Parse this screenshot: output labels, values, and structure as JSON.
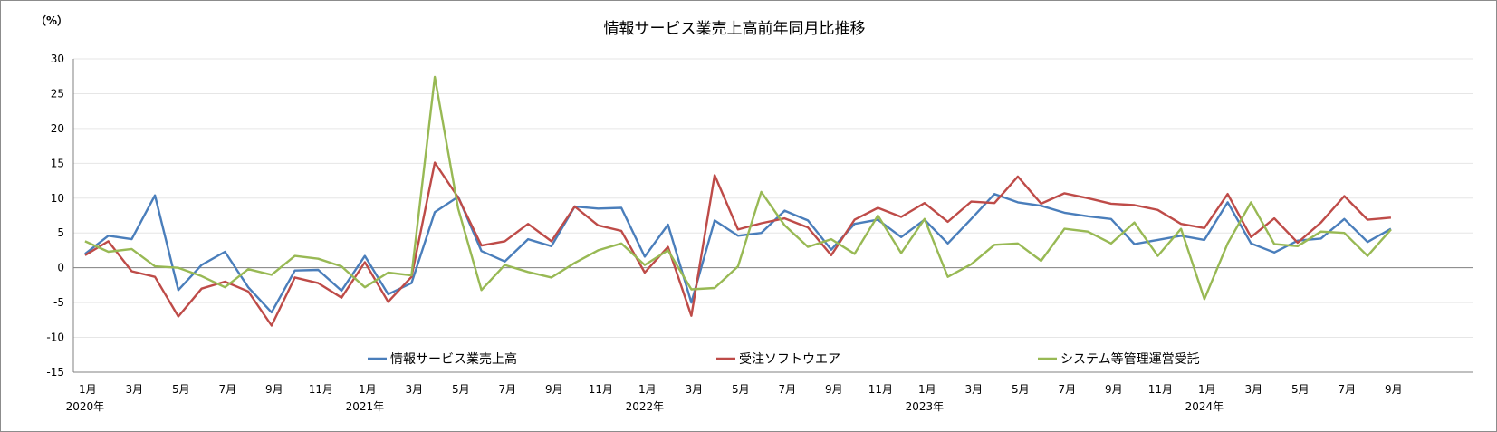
{
  "chart_data": {
    "type": "line",
    "title": "情報サービス業売上高前年同月比推移",
    "ylabel": "（%）",
    "xlabel": "",
    "ylim": [
      -15,
      30
    ],
    "yticks": [
      30,
      25,
      20,
      15,
      10,
      5,
      0,
      -5,
      -10,
      -15
    ],
    "grid": true,
    "legend_position": "bottom-inside",
    "x_tick_labels": [
      "1月",
      "3月",
      "5月",
      "7月",
      "9月",
      "11月",
      "1月",
      "3月",
      "5月",
      "7月",
      "9月",
      "11月",
      "1月",
      "3月",
      "5月",
      "7月",
      "9月",
      "11月",
      "1月",
      "3月",
      "5月",
      "7月",
      "9月",
      "11月",
      "1月",
      "3月",
      "5月",
      "7月",
      "9月"
    ],
    "year_labels": [
      "2020年",
      "2021年",
      "2022年",
      "2023年",
      "2024年"
    ],
    "series": [
      {
        "name": "情報サービス業売上高",
        "color": "#4a7ebb",
        "values": [
          2.0,
          4.6,
          4.1,
          10.4,
          -3.2,
          0.4,
          2.3,
          -2.8,
          -6.4,
          -0.4,
          -0.3,
          -3.3,
          1.7,
          -3.8,
          -2.2,
          8.0,
          10.2,
          2.4,
          0.9,
          4.1,
          3.1,
          8.8,
          8.5,
          8.6,
          1.6,
          6.2,
          -5.0,
          6.8,
          4.6,
          5.0,
          8.2,
          6.8,
          2.6,
          6.3,
          6.9,
          4.4,
          6.9,
          3.5,
          7.0,
          10.6,
          9.4,
          8.9,
          7.9,
          7.4,
          7.0,
          3.4,
          4.0,
          4.6,
          4.0,
          9.4,
          3.5,
          2.2,
          3.9,
          4.2,
          7.0,
          3.7,
          5.6
        ]
      },
      {
        "name": "受注ソフトウエア",
        "color": "#be4b48",
        "values": [
          1.8,
          3.8,
          -0.5,
          -1.3,
          -7.0,
          -3.0,
          -2.0,
          -3.4,
          -8.3,
          -1.4,
          -2.2,
          -4.3,
          0.8,
          -4.9,
          -1.3,
          15.1,
          10.1,
          3.2,
          3.8,
          6.3,
          3.8,
          8.8,
          6.1,
          5.3,
          -0.7,
          3.0,
          -6.9,
          13.3,
          5.5,
          6.4,
          7.1,
          5.8,
          1.8,
          6.9,
          8.6,
          7.3,
          9.3,
          6.6,
          9.5,
          9.3,
          13.1,
          9.2,
          10.7,
          10.0,
          9.2,
          9.0,
          8.3,
          6.3,
          5.7,
          10.6,
          4.4,
          7.1,
          3.6,
          6.5,
          10.3,
          6.9,
          7.2
        ]
      },
      {
        "name": "システム等管理運営受託",
        "color": "#98b954",
        "values": [
          3.8,
          2.3,
          2.7,
          0.2,
          0.0,
          -1.2,
          -2.8,
          -0.2,
          -1.0,
          1.7,
          1.3,
          0.2,
          -2.8,
          -0.7,
          -1.1,
          27.4,
          8.5,
          -3.2,
          0.4,
          -0.6,
          -1.4,
          0.7,
          2.5,
          3.5,
          0.4,
          2.5,
          -3.1,
          -2.9,
          0.2,
          10.9,
          6.1,
          3.0,
          4.1,
          2.0,
          7.5,
          2.1,
          7.0,
          -1.3,
          0.5,
          3.3,
          3.5,
          1.0,
          5.6,
          5.2,
          3.5,
          6.5,
          1.7,
          5.6,
          -4.5,
          3.5,
          9.4,
          3.4,
          3.1,
          5.2,
          5.0,
          1.7,
          5.5
        ]
      }
    ]
  }
}
